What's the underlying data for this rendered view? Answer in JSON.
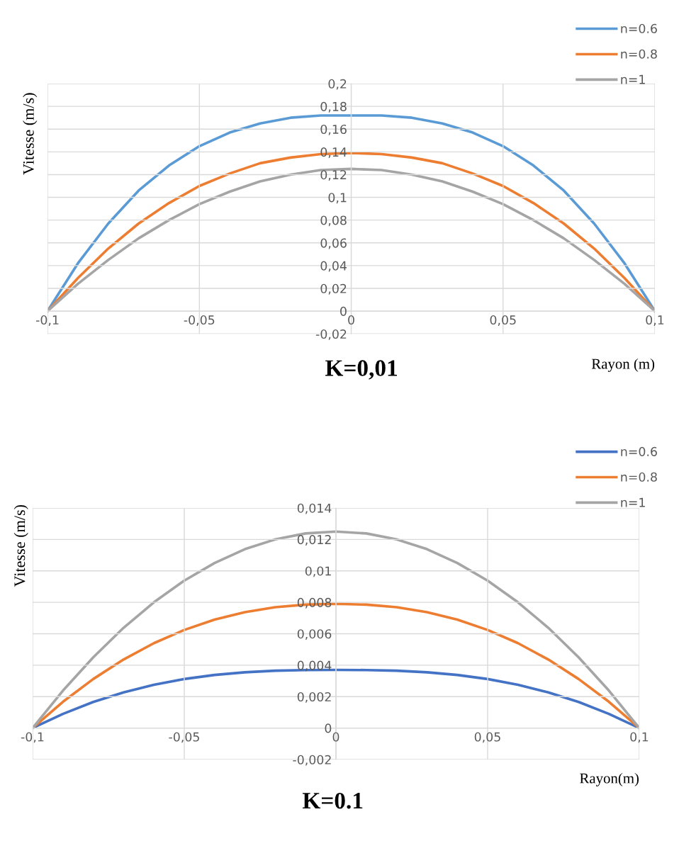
{
  "chart_data": [
    {
      "type": "line",
      "title": "K=0,01",
      "xlabel": "Rayon (m)",
      "ylabel": "Vitesse (m/s)",
      "x": [
        -0.1,
        -0.09,
        -0.08,
        -0.07,
        -0.06,
        -0.05,
        -0.04,
        -0.03,
        -0.02,
        -0.01,
        0,
        0.01,
        0.02,
        0.03,
        0.04,
        0.05,
        0.06,
        0.07,
        0.08,
        0.09,
        0.1
      ],
      "series": [
        {
          "name": "n=0.6",
          "color": "#5b9bd5",
          "values": [
            0,
            0.042,
            0.077,
            0.106,
            0.128,
            0.145,
            0.157,
            0.165,
            0.17,
            0.172,
            0.172,
            0.172,
            0.17,
            0.165,
            0.157,
            0.145,
            0.128,
            0.106,
            0.077,
            0.042,
            0
          ]
        },
        {
          "name": "n=0.8",
          "color": "#ed7d31",
          "values": [
            0,
            0.029,
            0.055,
            0.077,
            0.095,
            0.11,
            0.121,
            0.13,
            0.135,
            0.138,
            0.139,
            0.138,
            0.135,
            0.13,
            0.121,
            0.11,
            0.095,
            0.077,
            0.055,
            0.029,
            0
          ]
        },
        {
          "name": "n=1",
          "color": "#a5a5a5",
          "values": [
            0,
            0.024,
            0.045,
            0.064,
            0.08,
            0.094,
            0.105,
            0.114,
            0.12,
            0.124,
            0.125,
            0.124,
            0.12,
            0.114,
            0.105,
            0.094,
            0.08,
            0.064,
            0.045,
            0.024,
            0
          ]
        }
      ],
      "xlim": [
        -0.1,
        0.1
      ],
      "ylim": [
        -0.02,
        0.2
      ],
      "xticks": [
        {
          "value": -0.1,
          "label": "-0,1"
        },
        {
          "value": -0.05,
          "label": "-0,05"
        },
        {
          "value": 0,
          "label": "0"
        },
        {
          "value": 0.05,
          "label": "0,05"
        },
        {
          "value": 0.1,
          "label": "0,1"
        }
      ],
      "yticks": [
        {
          "value": -0.02,
          "label": "-0,02"
        },
        {
          "value": 0,
          "label": "0"
        },
        {
          "value": 0.02,
          "label": "0,02"
        },
        {
          "value": 0.04,
          "label": "0,04"
        },
        {
          "value": 0.06,
          "label": "0,06"
        },
        {
          "value": 0.08,
          "label": "0,08"
        },
        {
          "value": 0.1,
          "label": "0,1"
        },
        {
          "value": 0.12,
          "label": "0,12"
        },
        {
          "value": 0.14,
          "label": "0,14"
        },
        {
          "value": 0.16,
          "label": "0,16"
        },
        {
          "value": 0.18,
          "label": "0,18"
        },
        {
          "value": 0.2,
          "label": "0,2"
        }
      ],
      "grid": true,
      "legend": "top right",
      "marker": "none",
      "line_style": "solid"
    },
    {
      "type": "line",
      "title": "K=0.1",
      "xlabel": "Rayon(m)",
      "ylabel": "Vitesse (m/s)",
      "x": [
        -0.1,
        -0.09,
        -0.08,
        -0.07,
        -0.06,
        -0.05,
        -0.04,
        -0.03,
        -0.02,
        -0.01,
        0,
        0.01,
        0.02,
        0.03,
        0.04,
        0.05,
        0.06,
        0.07,
        0.08,
        0.09,
        0.1
      ],
      "series": [
        {
          "name": "n=0.6",
          "color": "#4472c4",
          "values": [
            0,
            0.0009,
            0.00166,
            0.00227,
            0.00275,
            0.00312,
            0.00338,
            0.00355,
            0.00365,
            0.00369,
            0.0037,
            0.00369,
            0.00365,
            0.00355,
            0.00338,
            0.00312,
            0.00275,
            0.00227,
            0.00166,
            0.0009,
            0
          ]
        },
        {
          "name": "n=0.8",
          "color": "#ed7d31",
          "values": [
            0,
            0.00167,
            0.00312,
            0.00436,
            0.0054,
            0.00624,
            0.0069,
            0.00737,
            0.00769,
            0.00785,
            0.0079,
            0.00785,
            0.00769,
            0.00737,
            0.0069,
            0.00624,
            0.0054,
            0.00436,
            0.00312,
            0.00167,
            0
          ]
        },
        {
          "name": "n=1",
          "color": "#a5a5a5",
          "values": [
            0,
            0.00238,
            0.0045,
            0.00638,
            0.008,
            0.00938,
            0.0105,
            0.01138,
            0.012,
            0.01238,
            0.0125,
            0.01238,
            0.012,
            0.01138,
            0.0105,
            0.00938,
            0.008,
            0.00638,
            0.0045,
            0.00238,
            0
          ]
        }
      ],
      "xlim": [
        -0.1,
        0.1
      ],
      "ylim": [
        -0.002,
        0.014
      ],
      "xticks": [
        {
          "value": -0.1,
          "label": "-0,1"
        },
        {
          "value": -0.05,
          "label": "-0,05"
        },
        {
          "value": 0,
          "label": "0"
        },
        {
          "value": 0.05,
          "label": "0,05"
        },
        {
          "value": 0.1,
          "label": "0,1"
        }
      ],
      "yticks": [
        {
          "value": -0.002,
          "label": "-0,002"
        },
        {
          "value": 0,
          "label": "0"
        },
        {
          "value": 0.002,
          "label": "0,002"
        },
        {
          "value": 0.004,
          "label": "0,004"
        },
        {
          "value": 0.006,
          "label": "0,006"
        },
        {
          "value": 0.008,
          "label": "0,008"
        },
        {
          "value": 0.01,
          "label": "0,01"
        },
        {
          "value": 0.012,
          "label": "0,012"
        },
        {
          "value": 0.014,
          "label": "0,014"
        }
      ],
      "grid": true,
      "legend": "top right",
      "marker": "none",
      "line_style": "solid"
    }
  ]
}
